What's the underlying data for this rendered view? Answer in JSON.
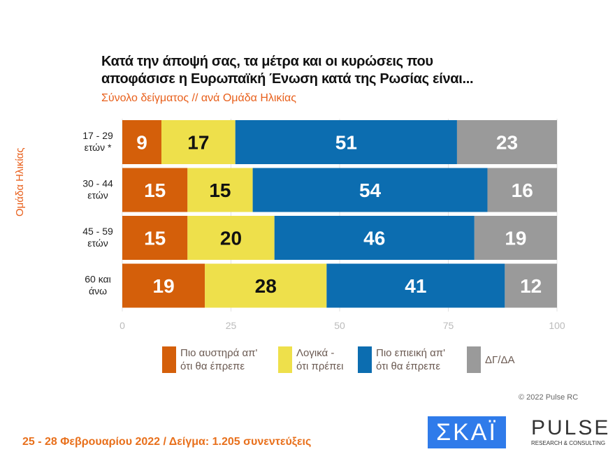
{
  "chart_data": {
    "type": "bar",
    "orientation": "horizontal",
    "stacked": true,
    "title": "Κατά την άποψή σας, τα μέτρα και οι κυρώσεις που αποφάσισε η Ευρωπαϊκή Ένωση κατά της Ρωσίας είναι...",
    "title_lines": [
      "Κατά την άποψή σας, τα μέτρα και οι κυρώσεις που",
      "αποφάσισε η Ευρωπαϊκή Ένωση κατά της Ρωσίας είναι..."
    ],
    "subtitle": "Σύνολο δείγματος // ανά Ομάδα Ηλικίας",
    "ylabel": "Ομάδα Ηλικίας",
    "categories": [
      [
        "17 - 29",
        "ετών *"
      ],
      [
        "30 - 44",
        "ετών"
      ],
      [
        "45 - 59",
        "ετών"
      ],
      [
        "60 και",
        "άνω"
      ]
    ],
    "series": [
      {
        "name": "Πιο αυστηρά απ' ότι θα έπρεπε",
        "lines": [
          "Πιο αυστηρά απ'",
          "ότι θα έπρεπε"
        ],
        "color": "#D45F0A",
        "label_color": "#ffffff",
        "values": [
          9,
          15,
          15,
          19
        ]
      },
      {
        "name": "Λογικά - ότι πρέπει",
        "lines": [
          "Λογικά -",
          "ότι πρέπει"
        ],
        "color": "#EEE04B",
        "label_color": "#111111",
        "values": [
          17,
          15,
          20,
          28
        ]
      },
      {
        "name": "Πιο επιεική απ' ότι θα έπρεπε",
        "lines": [
          "Πιο επιεική απ'",
          "ότι θα έπρεπε"
        ],
        "color": "#0C6DB0",
        "label_color": "#ffffff",
        "values": [
          51,
          54,
          46,
          41
        ]
      },
      {
        "name": "ΔΓ/ΔΑ",
        "lines": [
          "ΔΓ/ΔΑ",
          ""
        ],
        "color": "#9A9A9A",
        "label_color": "#ffffff",
        "values": [
          23,
          16,
          19,
          12
        ]
      }
    ],
    "xlim": [
      0,
      100
    ],
    "xticks": [
      0,
      25,
      50,
      75,
      100
    ],
    "legend": "bottom"
  },
  "footer": "25 - 28  Φεβρουαρίου  2022  /  Δείγμα:  1.205 συνεντεύξεις",
  "copyright": "© 2022 Pulse RC",
  "logos": {
    "skai": "ΣΚΑΪ",
    "pulse": "PULSE",
    "pulse_sub": "RESEARCH & CONSULTING"
  }
}
